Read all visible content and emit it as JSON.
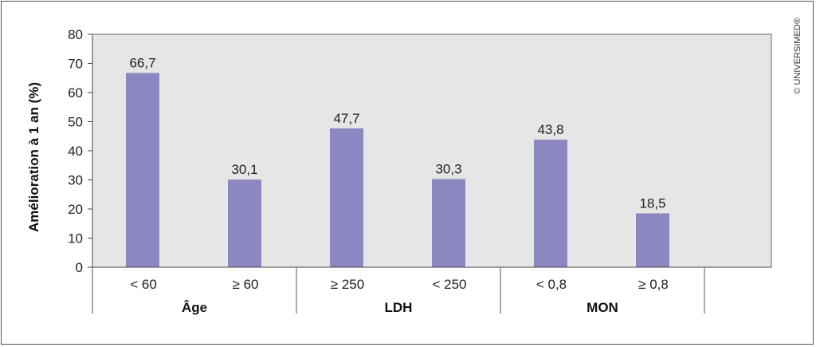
{
  "chart_data": {
    "type": "bar",
    "ylabel": "Amélioration à 1 an (%)",
    "ylim": [
      0,
      80
    ],
    "yticks": [
      0,
      10,
      20,
      30,
      40,
      50,
      60,
      70,
      80
    ],
    "grid": false,
    "categories": [
      "< 60",
      "≥ 60",
      "≥ 250",
      "< 250",
      "< 0,8",
      "≥ 0,8"
    ],
    "values": [
      66.7,
      30.1,
      47.7,
      30.3,
      43.8,
      18.5
    ],
    "value_labels": [
      "66,7",
      "30,1",
      "47,7",
      "30,3",
      "43,8",
      "18,5"
    ],
    "groups": [
      {
        "label": "Âge",
        "categories": [
          "< 60",
          "≥ 60"
        ]
      },
      {
        "label": "LDH",
        "categories": [
          "≥ 250",
          "< 250"
        ]
      },
      {
        "label": "MON",
        "categories": [
          "< 0,8",
          "≥ 0,8"
        ]
      }
    ],
    "bar_color": "#8b87c0",
    "plot_background": "#e6e6e6"
  },
  "copyright": "© UNIVERSIMED®"
}
